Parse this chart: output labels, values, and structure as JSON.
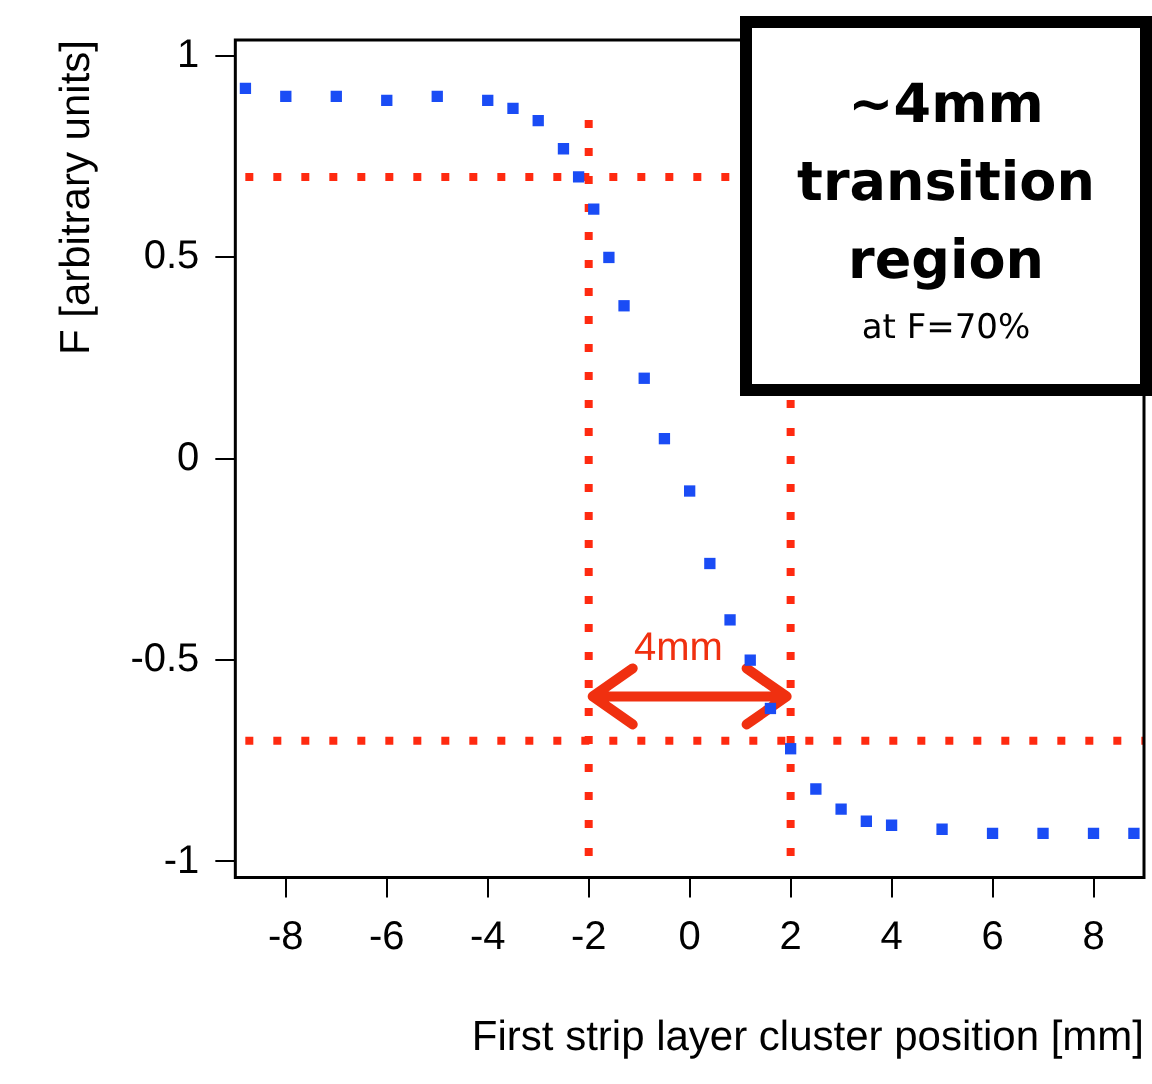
{
  "chart_data": {
    "type": "scatter",
    "xlabel": "First strip layer cluster position [mm]",
    "ylabel": "F [arbitrary units]",
    "x": [
      -8.8,
      -8,
      -7,
      -6,
      -5,
      -4,
      -3.5,
      -3,
      -2.5,
      -2.2,
      -1.9,
      -1.6,
      -1.3,
      -0.9,
      -0.5,
      0,
      0.4,
      0.8,
      1.2,
      1.6,
      2,
      2.5,
      3,
      3.5,
      4,
      5,
      6,
      7,
      8,
      8.8
    ],
    "series": [
      {
        "color": "#1a4cf5",
        "values": [
          0.92,
          0.9,
          0.9,
          0.89,
          0.9,
          0.89,
          0.87,
          0.84,
          0.77,
          0.7,
          0.62,
          0.5,
          0.38,
          0.2,
          0.05,
          -0.08,
          -0.26,
          -0.4,
          -0.5,
          -0.62,
          -0.72,
          -0.82,
          -0.87,
          -0.9,
          -0.91,
          -0.92,
          -0.93,
          -0.93,
          -0.93,
          -0.93
        ]
      }
    ],
    "xlim": [
      -9,
      9
    ],
    "ylim": [
      -1.04,
      1.04
    ],
    "xticks": [
      -8,
      -6,
      -4,
      -2,
      0,
      2,
      4,
      6,
      8
    ],
    "yticks": [
      -1,
      -0.5,
      0,
      0.5,
      1
    ],
    "marker": "square",
    "grid": false,
    "legend": false,
    "ref_lines": [
      {
        "axis": "x",
        "value": -2,
        "color": "#ff2a10",
        "line_style": "dotted"
      },
      {
        "axis": "x",
        "value": 2,
        "color": "#ff2a10",
        "line_style": "dotted"
      },
      {
        "axis": "y",
        "value": 0.7,
        "color": "#ff2a10",
        "line_style": "dotted"
      },
      {
        "axis": "y",
        "value": -0.7,
        "color": "#ff2a10",
        "line_style": "dotted"
      }
    ],
    "annotations": [
      {
        "text": "4mm",
        "x": 1.6,
        "y": -0.62
      },
      "~4mm transition region",
      "at F=70%"
    ]
  }
}
